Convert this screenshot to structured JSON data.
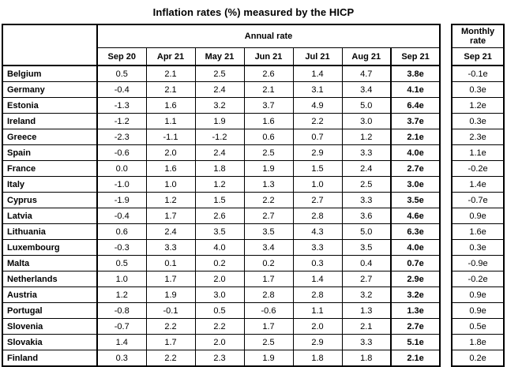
{
  "title": "Inflation rates (%) measured by the HICP",
  "chart_data": {
    "type": "table",
    "title": "Inflation rates (%) measured by the HICP",
    "annual_group_label": "Annual rate",
    "monthly_group_label": "Monthly rate",
    "annual_columns": [
      "Sep 20",
      "Apr 21",
      "May 21",
      "Jun 21",
      "Jul 21",
      "Aug 21",
      "Sep 21"
    ],
    "monthly_column": "Sep 21",
    "rows": [
      {
        "country": "Belgium",
        "annual": [
          "0.5",
          "2.1",
          "2.5",
          "2.6",
          "1.4",
          "4.7",
          "3.8e"
        ],
        "monthly": "-0.1e"
      },
      {
        "country": "Germany",
        "annual": [
          "-0.4",
          "2.1",
          "2.4",
          "2.1",
          "3.1",
          "3.4",
          "4.1e"
        ],
        "monthly": "0.3e"
      },
      {
        "country": "Estonia",
        "annual": [
          "-1.3",
          "1.6",
          "3.2",
          "3.7",
          "4.9",
          "5.0",
          "6.4e"
        ],
        "monthly": "1.2e"
      },
      {
        "country": "Ireland",
        "annual": [
          "-1.2",
          "1.1",
          "1.9",
          "1.6",
          "2.2",
          "3.0",
          "3.7e"
        ],
        "monthly": "0.3e"
      },
      {
        "country": "Greece",
        "annual": [
          "-2.3",
          "-1.1",
          "-1.2",
          "0.6",
          "0.7",
          "1.2",
          "2.1e"
        ],
        "monthly": "2.3e"
      },
      {
        "country": "Spain",
        "annual": [
          "-0.6",
          "2.0",
          "2.4",
          "2.5",
          "2.9",
          "3.3",
          "4.0e"
        ],
        "monthly": "1.1e"
      },
      {
        "country": "France",
        "annual": [
          "0.0",
          "1.6",
          "1.8",
          "1.9",
          "1.5",
          "2.4",
          "2.7e"
        ],
        "monthly": "-0.2e"
      },
      {
        "country": "Italy",
        "annual": [
          "-1.0",
          "1.0",
          "1.2",
          "1.3",
          "1.0",
          "2.5",
          "3.0e"
        ],
        "monthly": "1.4e"
      },
      {
        "country": "Cyprus",
        "annual": [
          "-1.9",
          "1.2",
          "1.5",
          "2.2",
          "2.7",
          "3.3",
          "3.5e"
        ],
        "monthly": "-0.7e"
      },
      {
        "country": "Latvia",
        "annual": [
          "-0.4",
          "1.7",
          "2.6",
          "2.7",
          "2.8",
          "3.6",
          "4.6e"
        ],
        "monthly": "0.9e"
      },
      {
        "country": "Lithuania",
        "annual": [
          "0.6",
          "2.4",
          "3.5",
          "3.5",
          "4.3",
          "5.0",
          "6.3e"
        ],
        "monthly": "1.6e"
      },
      {
        "country": "Luxembourg",
        "annual": [
          "-0.3",
          "3.3",
          "4.0",
          "3.4",
          "3.3",
          "3.5",
          "4.0e"
        ],
        "monthly": "0.3e"
      },
      {
        "country": "Malta",
        "annual": [
          "0.5",
          "0.1",
          "0.2",
          "0.2",
          "0.3",
          "0.4",
          "0.7e"
        ],
        "monthly": "-0.9e"
      },
      {
        "country": "Netherlands",
        "annual": [
          "1.0",
          "1.7",
          "2.0",
          "1.7",
          "1.4",
          "2.7",
          "2.9e"
        ],
        "monthly": "-0.2e"
      },
      {
        "country": "Austria",
        "annual": [
          "1.2",
          "1.9",
          "3.0",
          "2.8",
          "2.8",
          "3.2",
          "3.2e"
        ],
        "monthly": "0.9e"
      },
      {
        "country": "Portugal",
        "annual": [
          "-0.8",
          "-0.1",
          "0.5",
          "-0.6",
          "1.1",
          "1.3",
          "1.3e"
        ],
        "monthly": "0.9e"
      },
      {
        "country": "Slovenia",
        "annual": [
          "-0.7",
          "2.2",
          "2.2",
          "1.7",
          "2.0",
          "2.1",
          "2.7e"
        ],
        "monthly": "0.5e"
      },
      {
        "country": "Slovakia",
        "annual": [
          "1.4",
          "1.7",
          "2.0",
          "2.5",
          "2.9",
          "3.3",
          "5.1e"
        ],
        "monthly": "1.8e"
      },
      {
        "country": "Finland",
        "annual": [
          "0.3",
          "2.2",
          "2.3",
          "1.9",
          "1.8",
          "1.8",
          "2.1e"
        ],
        "monthly": "0.2e"
      }
    ]
  }
}
